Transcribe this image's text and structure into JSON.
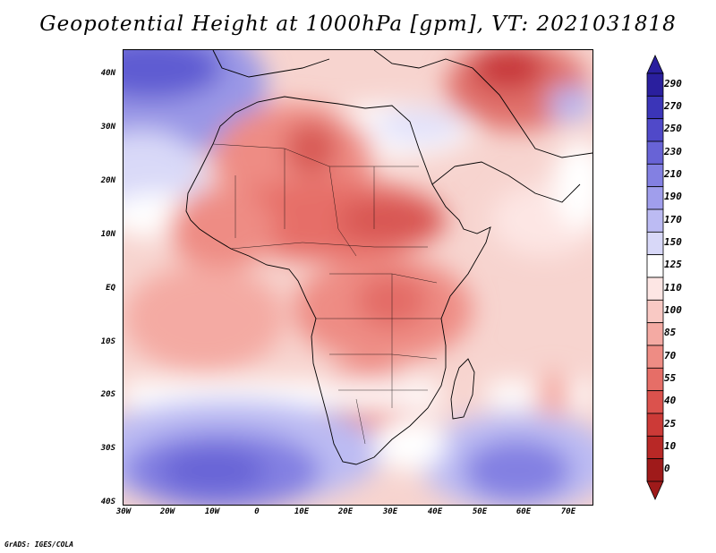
{
  "title": "Geopotential Height at 1000hPa [gpm], VT: 2021031818",
  "footer": "GrADS: IGES/COLA",
  "map": {
    "region": "Africa",
    "variable": "Geopotential Height",
    "level": "1000hPa",
    "units": "gpm",
    "valid_time": "2021031818",
    "lat_labels": [
      "40N",
      "30N",
      "20N",
      "10N",
      "EQ",
      "10S",
      "20S",
      "30S",
      "40S"
    ],
    "lon_labels": [
      "30W",
      "20W",
      "10W",
      "0",
      "10E",
      "20E",
      "30E",
      "40E",
      "50E",
      "60E",
      "70E"
    ]
  },
  "colorbar": {
    "levels": [
      "290",
      "270",
      "250",
      "230",
      "210",
      "190",
      "170",
      "150",
      "125",
      "110",
      "100",
      "85",
      "70",
      "55",
      "40",
      "25",
      "10",
      "0"
    ],
    "colors": [
      "#2a1f9e",
      "#3b35b8",
      "#5049c9",
      "#6863d6",
      "#8380e2",
      "#a09eec",
      "#bcbbf3",
      "#d8d8f8",
      "#ffffff",
      "#fde6e4",
      "#f9c9c4",
      "#f4aaa3",
      "#ee8c84",
      "#e66e67",
      "#db524d",
      "#cc3a37",
      "#b82826",
      "#9f1a1a"
    ]
  },
  "colors": {
    "background": "#ffffff",
    "frame": "#000000"
  }
}
